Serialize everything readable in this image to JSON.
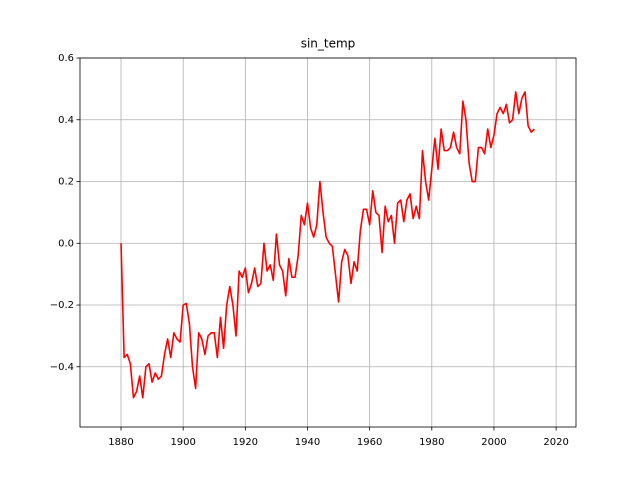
{
  "chart_data": {
    "type": "line",
    "title": "sin_temp",
    "x": [
      1880,
      1881,
      1882,
      1883,
      1884,
      1885,
      1886,
      1887,
      1888,
      1889,
      1890,
      1891,
      1892,
      1893,
      1894,
      1895,
      1896,
      1897,
      1898,
      1899,
      1900,
      1901,
      1902,
      1903,
      1904,
      1905,
      1906,
      1907,
      1908,
      1909,
      1910,
      1911,
      1912,
      1913,
      1914,
      1915,
      1916,
      1917,
      1918,
      1919,
      1920,
      1921,
      1922,
      1923,
      1924,
      1925,
      1926,
      1927,
      1928,
      1929,
      1930,
      1931,
      1932,
      1933,
      1934,
      1935,
      1936,
      1937,
      1938,
      1939,
      1940,
      1941,
      1942,
      1943,
      1944,
      1945,
      1946,
      1947,
      1948,
      1949,
      1950,
      1951,
      1952,
      1953,
      1954,
      1955,
      1956,
      1957,
      1958,
      1959,
      1960,
      1961,
      1962,
      1963,
      1964,
      1965,
      1966,
      1967,
      1968,
      1969,
      1970,
      1971,
      1972,
      1973,
      1974,
      1975,
      1976,
      1977,
      1978,
      1979,
      1980,
      1981,
      1982,
      1983,
      1984,
      1985,
      1986,
      1987,
      1988,
      1989,
      1990,
      1991,
      1992,
      1993,
      1994,
      1995,
      1996,
      1997,
      1998,
      1999,
      2000,
      2001,
      2002,
      2003,
      2004,
      2005,
      2006,
      2007,
      2008,
      2009,
      2010,
      2011,
      2012,
      2013
    ],
    "series": [
      {
        "name": "sin_temp",
        "color": "#ff0000",
        "values": [
          0.0,
          -0.37,
          -0.36,
          -0.39,
          -0.5,
          -0.48,
          -0.43,
          -0.5,
          -0.4,
          -0.39,
          -0.45,
          -0.42,
          -0.44,
          -0.43,
          -0.36,
          -0.31,
          -0.37,
          -0.29,
          -0.31,
          -0.32,
          -0.2,
          -0.195,
          -0.26,
          -0.4,
          -0.47,
          -0.29,
          -0.31,
          -0.36,
          -0.3,
          -0.29,
          -0.29,
          -0.37,
          -0.24,
          -0.34,
          -0.2,
          -0.14,
          -0.2,
          -0.3,
          -0.09,
          -0.11,
          -0.08,
          -0.16,
          -0.13,
          -0.08,
          -0.14,
          -0.13,
          0.0,
          -0.09,
          -0.07,
          -0.12,
          0.03,
          -0.07,
          -0.09,
          -0.17,
          -0.05,
          -0.11,
          -0.11,
          -0.04,
          0.09,
          0.06,
          0.13,
          0.05,
          0.02,
          0.06,
          0.2,
          0.1,
          0.02,
          0.0,
          -0.01,
          -0.1,
          -0.19,
          -0.06,
          -0.02,
          -0.04,
          -0.13,
          -0.06,
          -0.09,
          0.04,
          0.11,
          0.11,
          0.06,
          0.17,
          0.1,
          0.09,
          -0.03,
          0.12,
          0.07,
          0.09,
          0.0,
          0.13,
          0.14,
          0.07,
          0.14,
          0.16,
          0.08,
          0.12,
          0.08,
          0.3,
          0.2,
          0.14,
          0.24,
          0.34,
          0.24,
          0.37,
          0.3,
          0.3,
          0.31,
          0.36,
          0.31,
          0.29,
          0.46,
          0.4,
          0.26,
          0.2,
          0.2,
          0.31,
          0.31,
          0.29,
          0.37,
          0.31,
          0.35,
          0.42,
          0.44,
          0.42,
          0.45,
          0.39,
          0.4,
          0.49,
          0.42,
          0.47,
          0.49,
          0.38,
          0.36,
          0.37
        ]
      }
    ],
    "xlim": [
      1866.8,
      2026.4
    ],
    "ylim": [
      -0.595,
      0.6
    ],
    "xticks": [
      1880,
      1900,
      1920,
      1940,
      1960,
      1980,
      2000,
      2020
    ],
    "yticks": [
      {
        "value": -0.4,
        "label": "−0.4"
      },
      {
        "value": -0.2,
        "label": "−0.2"
      },
      {
        "value": 0,
        "label": "0.0"
      },
      0.2,
      0.4,
      0.6
    ],
    "grid": true
  }
}
